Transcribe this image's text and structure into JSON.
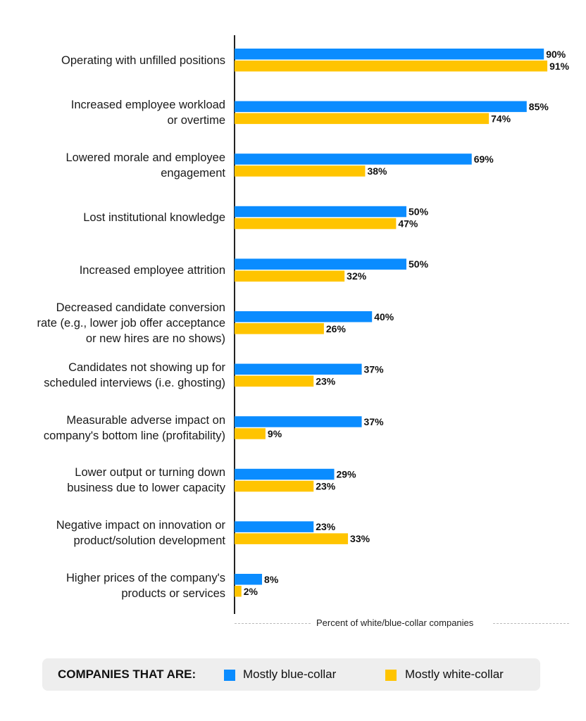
{
  "chart_data": {
    "type": "bar",
    "orientation": "horizontal",
    "categories": [
      "Operating with unfilled positions",
      "Increased employee workload or overtime",
      "Lowered morale and employee engagement",
      "Lost institutional knowledge",
      "Increased employee attrition",
      "Decreased candidate conversion rate (e.g., lower job offer acceptance or new hires are no shows)",
      "Candidates not showing up for scheduled interviews (i.e. ghosting)",
      "Measurable adverse impact on company's bottom line (profitability)",
      "Lower output or turning down business due to lower capacity",
      "Negative impact on innovation or product/solution development",
      "Higher prices of the company's products or services"
    ],
    "category_lines": [
      [
        "Operating with unfilled positions"
      ],
      [
        "Increased employee workload",
        "or overtime"
      ],
      [
        "Lowered morale and employee",
        "engagement"
      ],
      [
        "Lost institutional knowledge"
      ],
      [
        "Increased employee attrition"
      ],
      [
        "Decreased candidate conversion",
        "rate (e.g., lower job offer acceptance",
        "or new hires are no shows)"
      ],
      [
        "Candidates not showing up for",
        "scheduled interviews (i.e. ghosting)"
      ],
      [
        "Measurable adverse impact on",
        "company's bottom line (profitability)"
      ],
      [
        "Lower output or turning down",
        "business due to lower capacity"
      ],
      [
        "Negative impact on innovation or",
        "product/solution development"
      ],
      [
        "Higher prices of the company's",
        "products or services"
      ]
    ],
    "series": [
      {
        "name": "Mostly blue-collar",
        "color": "#0a8cff",
        "values": [
          90,
          85,
          69,
          50,
          50,
          40,
          37,
          37,
          29,
          23,
          8
        ]
      },
      {
        "name": "Mostly white-collar",
        "color": "#ffc400",
        "values": [
          91,
          74,
          38,
          47,
          32,
          26,
          23,
          9,
          23,
          33,
          2
        ]
      }
    ],
    "xlabel": "Percent of white/blue-collar companies",
    "xlim": [
      0,
      100
    ],
    "value_suffix": "%",
    "grid": false,
    "legend_position": "bottom",
    "legend_title": "COMPANIES THAT ARE:"
  }
}
